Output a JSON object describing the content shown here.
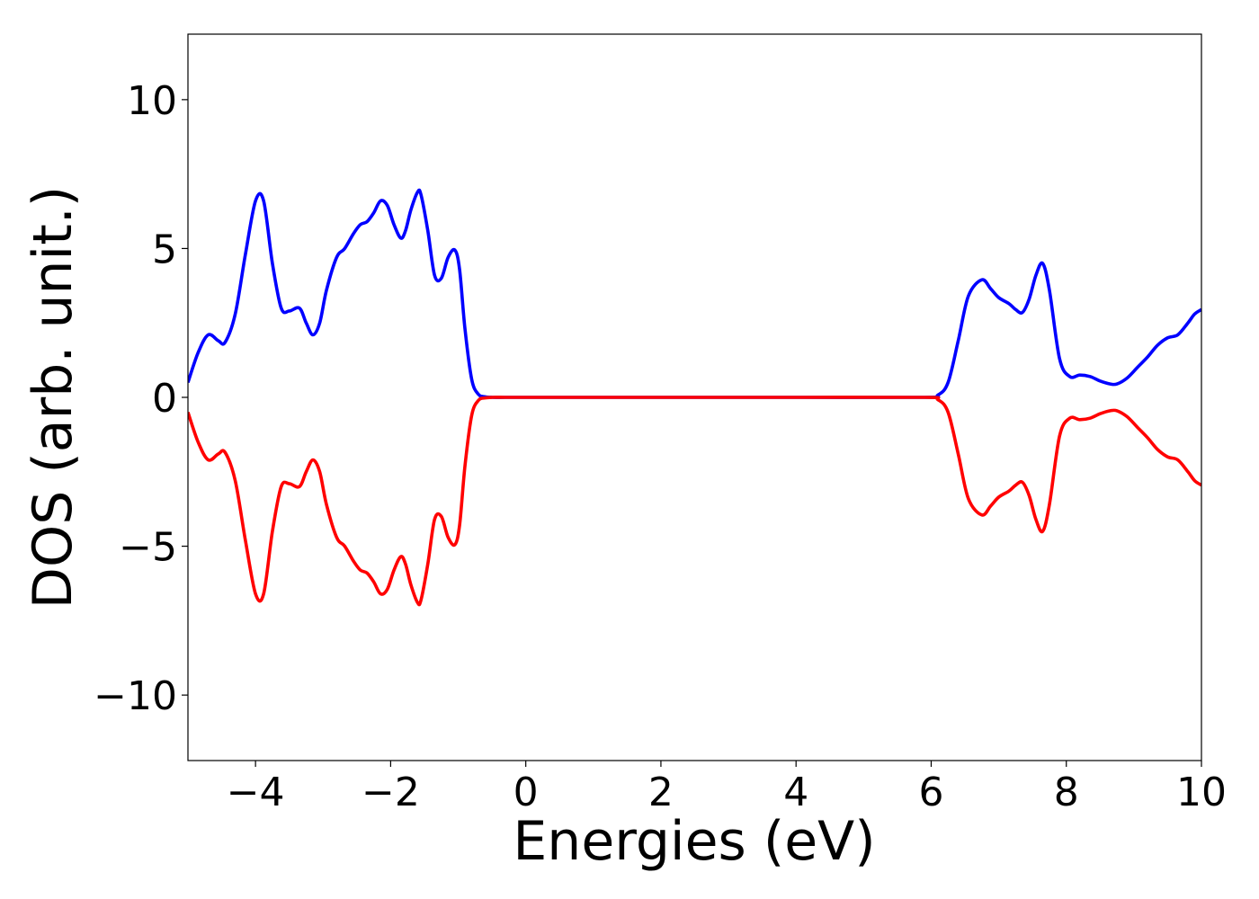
{
  "chart_data": {
    "type": "line",
    "title": "",
    "xlabel": "Energies (eV)",
    "ylabel": "DOS (arb. unit.)",
    "xlim": [
      -5,
      10
    ],
    "ylim": [
      -12.2,
      12.2
    ],
    "x_ticks": [
      -4,
      -2,
      0,
      2,
      4,
      6,
      8,
      10
    ],
    "x_tick_labels": [
      "−4",
      "−2",
      "0",
      "2",
      "4",
      "6",
      "8",
      "10"
    ],
    "y_ticks": [
      -10,
      -5,
      0,
      5,
      10
    ],
    "y_tick_labels": [
      "−10",
      "−5",
      "0",
      "5",
      "10"
    ],
    "grid": false,
    "legend": "none",
    "series": [
      {
        "color": "#0000ff",
        "x": [
          -5.0,
          -4.85,
          -4.7,
          -4.55,
          -4.45,
          -4.3,
          -4.15,
          -4.0,
          -3.88,
          -3.75,
          -3.62,
          -3.5,
          -3.35,
          -3.25,
          -3.15,
          -3.05,
          -2.95,
          -2.8,
          -2.68,
          -2.55,
          -2.45,
          -2.35,
          -2.25,
          -2.15,
          -2.05,
          -1.95,
          -1.85,
          -1.78,
          -1.7,
          -1.6,
          -1.55,
          -1.45,
          -1.35,
          -1.25,
          -1.15,
          -1.05,
          -0.98,
          -0.9,
          -0.8,
          -0.7,
          -0.6,
          -0.5,
          -0.3,
          0,
          2,
          4,
          5.9,
          6.1,
          6.25,
          6.4,
          6.55,
          6.75,
          6.88,
          7.0,
          7.15,
          7.25,
          7.35,
          7.45,
          7.55,
          7.65,
          7.75,
          7.9,
          8.05,
          8.2,
          8.35,
          8.5,
          8.65,
          8.75,
          8.9,
          9.05,
          9.2,
          9.35,
          9.5,
          9.65,
          9.8,
          9.9,
          10.0
        ],
        "y": [
          0.5,
          1.5,
          2.1,
          1.9,
          1.85,
          2.8,
          4.8,
          6.6,
          6.6,
          4.5,
          3.0,
          2.9,
          3.0,
          2.5,
          2.1,
          2.5,
          3.6,
          4.7,
          5.0,
          5.5,
          5.8,
          5.9,
          6.2,
          6.6,
          6.45,
          5.8,
          5.35,
          5.6,
          6.3,
          6.9,
          6.8,
          5.6,
          4.1,
          4.0,
          4.7,
          4.95,
          4.3,
          2.3,
          0.6,
          0.1,
          0.02,
          0,
          0,
          0,
          0,
          0,
          0.0,
          0.08,
          0.5,
          1.9,
          3.4,
          3.95,
          3.65,
          3.35,
          3.15,
          2.95,
          2.85,
          3.3,
          4.1,
          4.5,
          3.6,
          1.3,
          0.7,
          0.75,
          0.7,
          0.55,
          0.45,
          0.45,
          0.65,
          1.0,
          1.35,
          1.75,
          2.0,
          2.1,
          2.5,
          2.8,
          2.95
        ]
      },
      {
        "color": "#ff0000",
        "x": [
          -5.0,
          -4.85,
          -4.7,
          -4.55,
          -4.45,
          -4.3,
          -4.15,
          -4.0,
          -3.88,
          -3.75,
          -3.62,
          -3.5,
          -3.35,
          -3.25,
          -3.15,
          -3.05,
          -2.95,
          -2.8,
          -2.68,
          -2.55,
          -2.45,
          -2.35,
          -2.25,
          -2.15,
          -2.05,
          -1.95,
          -1.85,
          -1.78,
          -1.7,
          -1.6,
          -1.55,
          -1.45,
          -1.35,
          -1.25,
          -1.15,
          -1.05,
          -0.98,
          -0.9,
          -0.8,
          -0.7,
          -0.6,
          -0.5,
          -0.3,
          0,
          2,
          4,
          5.9,
          6.1,
          6.25,
          6.4,
          6.55,
          6.75,
          6.88,
          7.0,
          7.15,
          7.25,
          7.35,
          7.45,
          7.55,
          7.65,
          7.75,
          7.9,
          8.05,
          8.2,
          8.35,
          8.5,
          8.65,
          8.75,
          8.9,
          9.05,
          9.2,
          9.35,
          9.5,
          9.65,
          9.8,
          9.9,
          10.0
        ],
        "y": [
          -0.5,
          -1.5,
          -2.1,
          -1.9,
          -1.85,
          -2.8,
          -4.8,
          -6.6,
          -6.6,
          -4.5,
          -3.0,
          -2.9,
          -3.0,
          -2.5,
          -2.1,
          -2.5,
          -3.6,
          -4.7,
          -5.0,
          -5.5,
          -5.8,
          -5.9,
          -6.2,
          -6.6,
          -6.45,
          -5.8,
          -5.35,
          -5.6,
          -6.3,
          -6.9,
          -6.8,
          -5.6,
          -4.1,
          -4.0,
          -4.7,
          -4.95,
          -4.3,
          -2.3,
          -0.6,
          -0.1,
          -0.02,
          0,
          0,
          0,
          0,
          0,
          0.0,
          -0.08,
          -0.5,
          -1.9,
          -3.4,
          -3.95,
          -3.65,
          -3.35,
          -3.15,
          -2.95,
          -2.85,
          -3.3,
          -4.1,
          -4.5,
          -3.6,
          -1.3,
          -0.7,
          -0.75,
          -0.7,
          -0.55,
          -0.45,
          -0.45,
          -0.65,
          -1.0,
          -1.35,
          -1.75,
          -2.0,
          -2.1,
          -2.5,
          -2.8,
          -2.95
        ]
      }
    ]
  }
}
